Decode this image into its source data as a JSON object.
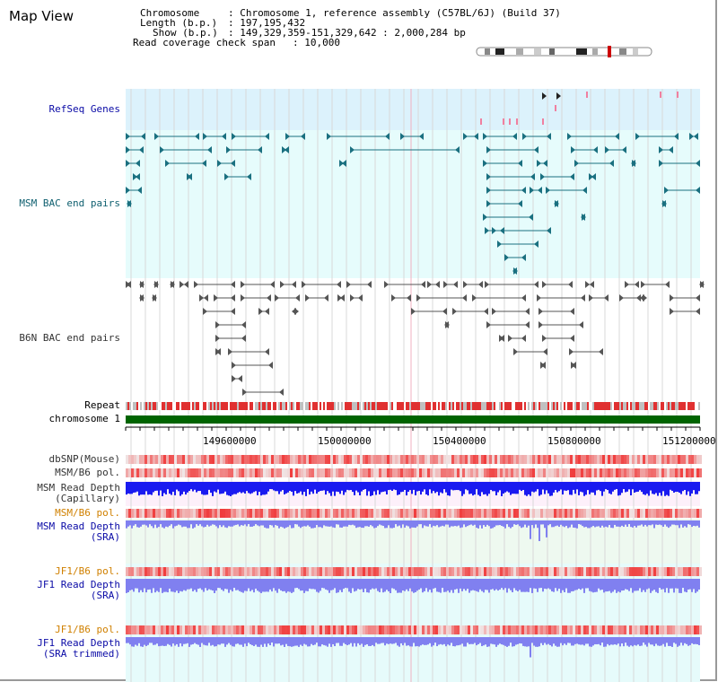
{
  "title": "Map View",
  "info": {
    "chromosome_label": "Chromosome",
    "chromosome_value": ": Chromosome 1, reference assembly (C57BL/6J) (Build 37)",
    "length_label": "Length (b.p.)",
    "length_value": ": 197,195,432",
    "show_label": "Show (b.p.)",
    "show_value": ": 149,329,359-151,329,642 : 2,000,284 bp",
    "span_label": "Read coverage check span",
    "span_value": ": 10,000"
  },
  "tracks": {
    "refseq": "RefSeq Genes",
    "msm_bac": "MSM BAC end pairs",
    "b6n_bac": "B6N BAC end pairs",
    "repeat": "Repeat",
    "chromosome": "chromosome 1",
    "dbsnp": "dbSNP(Mouse)",
    "msm_b6_pol": "MSM/B6 pol.",
    "msm_depth_cap_1": "MSM Read Depth",
    "msm_depth_cap_2": "(Capillary)",
    "msm_b6_pol2": "MSM/B6 pol.",
    "msm_depth_sra_1": "MSM Read Depth",
    "msm_depth_sra_2": "(SRA)",
    "jf1_b6_pol": "JF1/B6 pol.",
    "jf1_depth_sra_1": "JF1 Read Depth",
    "jf1_depth_sra_2": "(SRA)",
    "jf1_b6_pol2": "JF1/B6 pol.",
    "jf1_depth_tr_1": "JF1 Read Depth",
    "jf1_depth_tr_2": "(SRA trimmed)"
  },
  "axis": {
    "ticks": [
      "149600000",
      "150000000",
      "150400000",
      "150800000",
      "151200000"
    ]
  },
  "colors": {
    "refseq_bg": "#dff3ff",
    "msm_bg": "#e6fdfd",
    "track_teal": "#1a7080",
    "track_gray": "#555555",
    "chromosome_green": "#006400",
    "depth_blue": "#1a1af0",
    "depth_light": "#8080f0",
    "pol_red": "#f04040"
  }
}
